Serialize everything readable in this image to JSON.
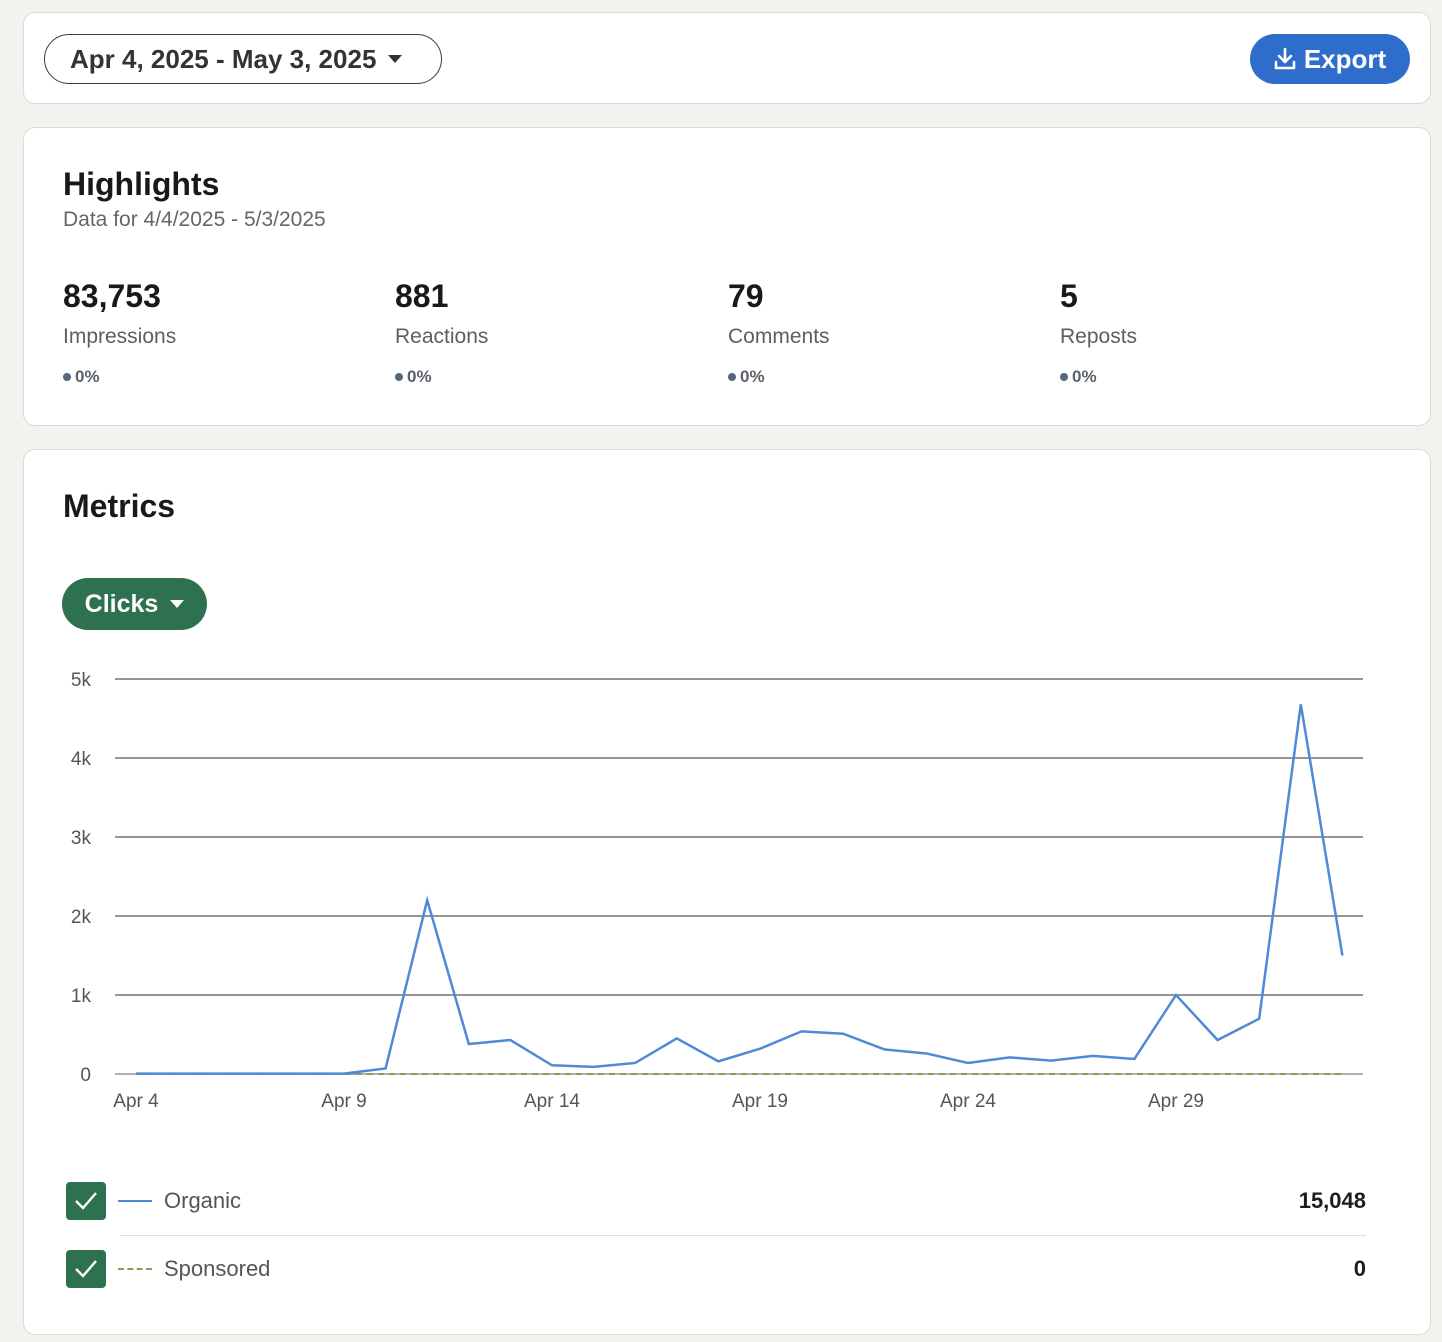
{
  "toolbar": {
    "date_range": "Apr 4, 2025 - May 3, 2025",
    "export_label": "Export"
  },
  "highlights": {
    "title": "Highlights",
    "subtitle": "Data for 4/4/2025 - 5/3/2025",
    "stats": [
      {
        "value": "83,753",
        "label": "Impressions",
        "change": "0%"
      },
      {
        "value": "881",
        "label": "Reactions",
        "change": "0%"
      },
      {
        "value": "79",
        "label": "Comments",
        "change": "0%"
      },
      {
        "value": "5",
        "label": "Reposts",
        "change": "0%"
      }
    ]
  },
  "metrics": {
    "title": "Metrics",
    "selected_metric": "Clicks"
  },
  "legend": [
    {
      "label": "Organic",
      "total": "15,048",
      "checked": true
    },
    {
      "label": "Sponsored",
      "total": "0",
      "checked": true
    }
  ],
  "colors": {
    "organic": "#4f8ad8",
    "sponsored": "#8c9a52",
    "accent_green": "#2e7151",
    "export_blue": "#2f6dcd"
  },
  "chart_data": {
    "type": "line",
    "x": [
      "Apr 4",
      "Apr 5",
      "Apr 6",
      "Apr 7",
      "Apr 8",
      "Apr 9",
      "Apr 10",
      "Apr 11",
      "Apr 12",
      "Apr 13",
      "Apr 14",
      "Apr 15",
      "Apr 16",
      "Apr 17",
      "Apr 18",
      "Apr 19",
      "Apr 20",
      "Apr 21",
      "Apr 22",
      "Apr 23",
      "Apr 24",
      "Apr 25",
      "Apr 26",
      "Apr 27",
      "Apr 28",
      "Apr 29",
      "Apr 30",
      "May 1",
      "May 2",
      "May 3"
    ],
    "x_tick_labels": [
      "Apr 4",
      "Apr 9",
      "Apr 14",
      "Apr 19",
      "Apr 24",
      "Apr 29"
    ],
    "y_tick_labels": [
      "0",
      "1k",
      "2k",
      "3k",
      "4k",
      "5k"
    ],
    "ylim": [
      0,
      5000
    ],
    "grid": true,
    "series": [
      {
        "name": "Organic",
        "style": "solid",
        "values": [
          5,
          5,
          5,
          5,
          5,
          5,
          70,
          2200,
          380,
          430,
          110,
          90,
          140,
          450,
          160,
          320,
          540,
          510,
          310,
          260,
          140,
          210,
          170,
          230,
          190,
          1000,
          430,
          700,
          4680,
          1500
        ]
      },
      {
        "name": "Sponsored",
        "style": "dashed",
        "values": [
          0,
          0,
          0,
          0,
          0,
          0,
          0,
          0,
          0,
          0,
          0,
          0,
          0,
          0,
          0,
          0,
          0,
          0,
          0,
          0,
          0,
          0,
          0,
          0,
          0,
          0,
          0,
          0,
          0,
          0
        ]
      }
    ]
  }
}
